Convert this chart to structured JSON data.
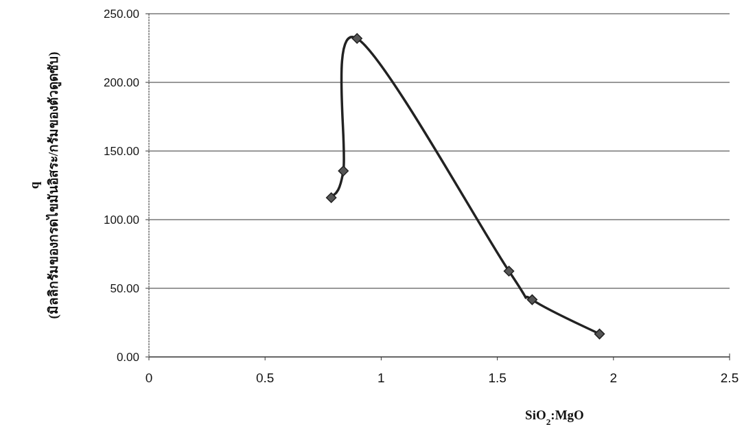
{
  "chart_data": {
    "type": "line",
    "xlabel": "SiO$_{2}$:MgO",
    "ylabel": "q\n(มิลลิกรัมของกรดไขมันอิสระ/กรัมของตัวดูดซับ)",
    "x": [
      0.785,
      0.837,
      0.896,
      1.55,
      1.65,
      1.94
    ],
    "series": [
      {
        "color": "#222222",
        "values": [
          116,
          135.5,
          232,
          62.5,
          41.7,
          16.7
        ]
      }
    ],
    "xlim": [
      0,
      2.5
    ],
    "xticks": [
      0,
      0.5,
      1,
      1.5,
      2,
      2.5
    ],
    "ylim": [
      0,
      250
    ],
    "yticks": [
      {
        "value": 0,
        "label": "0.00"
      },
      {
        "value": 50,
        "label": "50.00"
      },
      {
        "value": 100,
        "label": "100.00"
      },
      {
        "value": 150,
        "label": "150.00"
      },
      {
        "value": 200,
        "label": "200.00"
      },
      {
        "value": 250,
        "label": "250.00"
      }
    ],
    "grid": "y",
    "marker": "diamond",
    "line_style": "solid"
  }
}
